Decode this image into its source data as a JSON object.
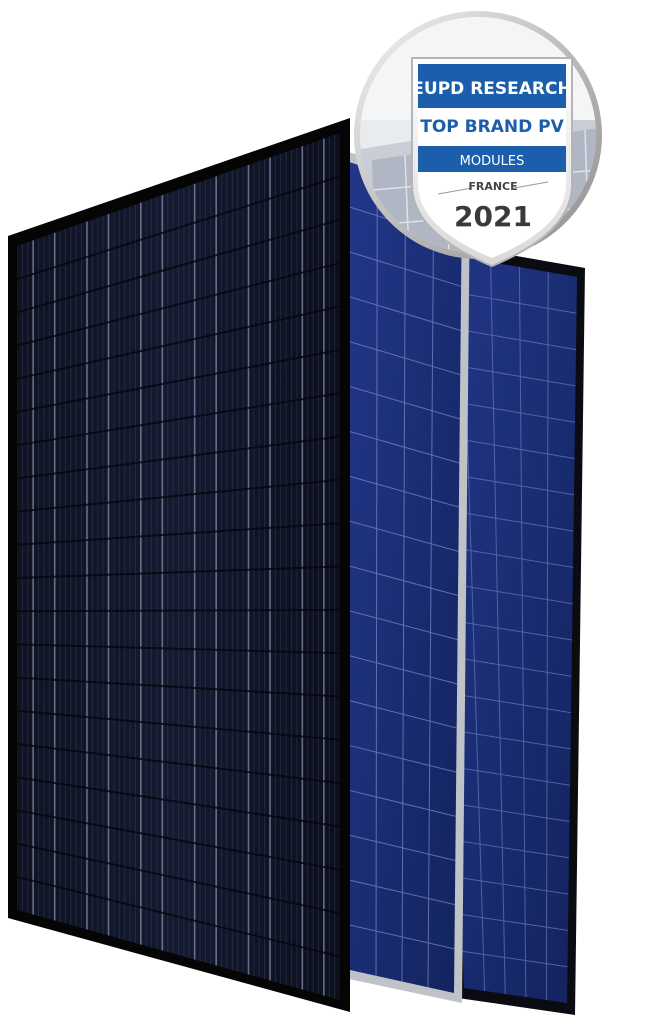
{
  "badge": {
    "line1": "EUPD RESEARCH",
    "line2": "TOP BRAND PV",
    "line3": "MODULES",
    "country": "FRANCE",
    "year": "2021"
  },
  "colors": {
    "badge_blue": "#1b5eab",
    "badge_blue_dark": "#174f91",
    "panel_black": "#0b0c12",
    "panel_blue": "#1a2f78",
    "frame_silver": "#bfc3c8"
  },
  "panels": [
    {
      "name": "back-panel",
      "frame": "black",
      "cells": "poly-blue"
    },
    {
      "name": "middle-panel",
      "frame": "silver",
      "cells": "poly-blue"
    },
    {
      "name": "front-panel",
      "frame": "black",
      "cells": "mono-black"
    }
  ]
}
